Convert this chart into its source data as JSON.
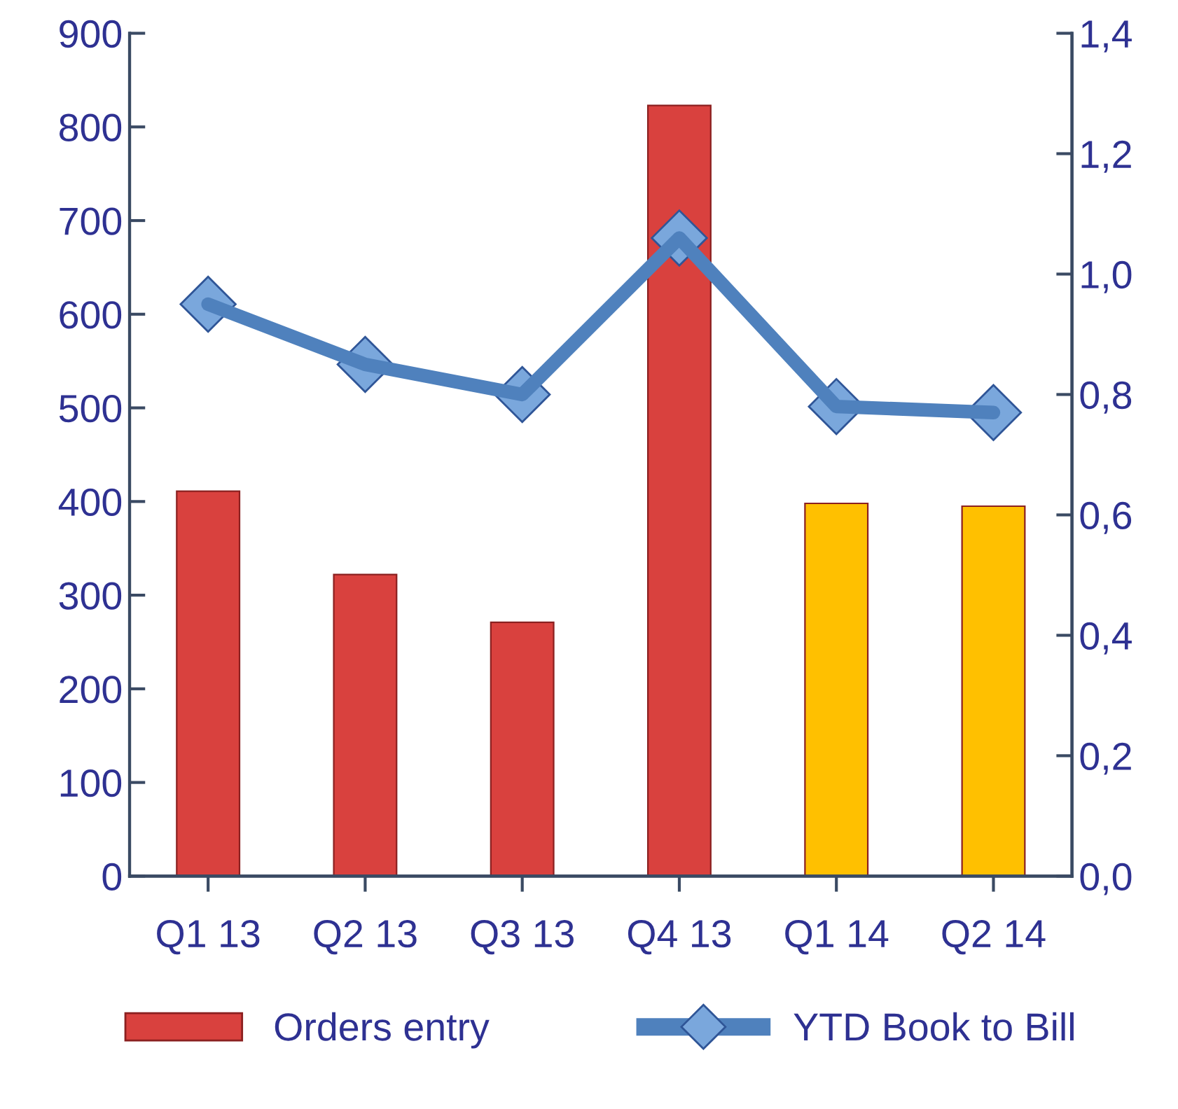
{
  "chart_data": {
    "type": "bar",
    "categories": [
      "Q1 13",
      "Q2 13",
      "Q3 13",
      "Q4 13",
      "Q1 14",
      "Q2 14"
    ],
    "series": [
      {
        "name": "Orders entry",
        "color": "#d9413e",
        "colors": [
          "#d9413e",
          "#d9413e",
          "#d9413e",
          "#d9413e",
          "#ffc000",
          "#ffc000"
        ],
        "values": [
          411,
          322,
          271,
          823,
          398,
          395
        ]
      },
      {
        "name": "YTD Book to Bill",
        "type": "line",
        "axis": "y2",
        "color": "#4f81bd",
        "marker": "diamond",
        "values": [
          0.95,
          0.85,
          0.8,
          1.06,
          0.78,
          0.77
        ]
      }
    ],
    "ylim": [
      0,
      900
    ],
    "yticks": [
      0,
      100,
      200,
      300,
      400,
      500,
      600,
      700,
      800,
      900
    ],
    "y2lim": [
      0,
      1.4
    ],
    "y2ticks": [
      {
        "value": 0,
        "label": "0,0"
      },
      {
        "value": 0.2,
        "label": "0,2"
      },
      {
        "value": 0.4,
        "label": "0,4"
      },
      {
        "value": 0.6,
        "label": "0,6"
      },
      {
        "value": 0.8,
        "label": "0,8"
      },
      {
        "value": 1.0,
        "label": "1,0"
      },
      {
        "value": 1.2,
        "label": "1,2"
      },
      {
        "value": 1.4,
        "label": "1,4"
      }
    ],
    "grid": false,
    "legend": "bottom"
  }
}
